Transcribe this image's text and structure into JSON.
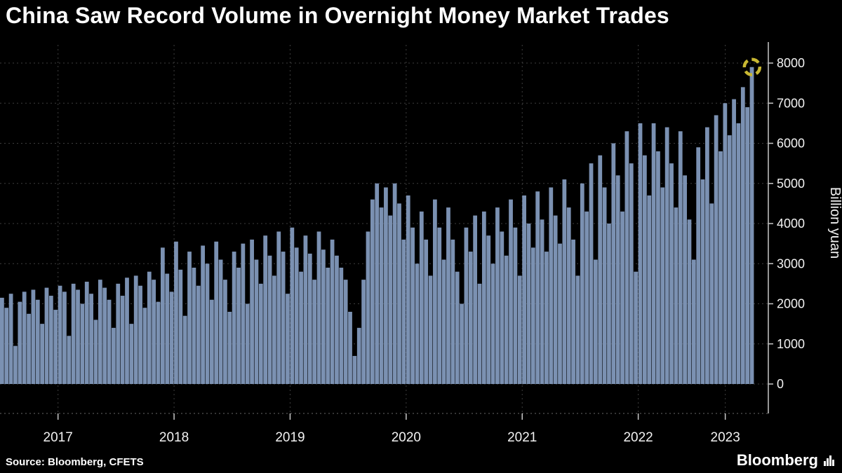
{
  "title": "China Saw Record Volume in Overnight Money Market Trades",
  "footer": {
    "source": "Source: Bloomberg, CFETS",
    "brand": "Bloomberg"
  },
  "colors": {
    "background": "#000000",
    "bar": "#7b91b2",
    "grid": "#3e3e3e",
    "axis_line": "#c8c8c8",
    "tick_text": "#f2f2f2",
    "title_text": "#ffffff",
    "marker": "#c9b832"
  },
  "y_axis": {
    "label": "Billion yuan",
    "ticks": [
      0,
      1000,
      2000,
      3000,
      4000,
      5000,
      6000,
      7000,
      8000
    ],
    "max": 8000
  },
  "x_axis": {
    "ticks": [
      "2017",
      "2018",
      "2019",
      "2020",
      "2021",
      "2022",
      "2023"
    ]
  },
  "chart_data": {
    "type": "bar",
    "title": "China Saw Record Volume in Overnight Money Market Trades",
    "xlabel": "",
    "ylabel": "Billion yuan",
    "ylim": [
      0,
      8000
    ],
    "grid": "dotted",
    "legend": "none",
    "x_tick_labels": [
      "2017",
      "2018",
      "2019",
      "2020",
      "2021",
      "2022",
      "2023"
    ],
    "samples_per_year": [
      26,
      26,
      26,
      26,
      26,
      26,
      13
    ],
    "frequency": "approx. biweekly values estimated from daily series",
    "values": [
      2150,
      1900,
      2250,
      950,
      2050,
      2300,
      1750,
      2350,
      2100,
      1500,
      2400,
      2200,
      1850,
      2450,
      2300,
      1200,
      2500,
      2350,
      2000,
      2550,
      2250,
      1600,
      2600,
      2400,
      2100,
      1400,
      2500,
      2200,
      2650,
      1500,
      2700,
      2450,
      1900,
      2800,
      2600,
      2050,
      3400,
      2750,
      2300,
      3550,
      2850,
      1700,
      3300,
      2900,
      2450,
      3450,
      3000,
      2100,
      3550,
      3100,
      2600,
      1800,
      3300,
      2900,
      3500,
      2000,
      3600,
      3100,
      2500,
      3700,
      3200,
      2700,
      3800,
      3300,
      2250,
      3900,
      3400,
      2800,
      3700,
      3250,
      2600,
      3800,
      3350,
      2900,
      3600,
      3200,
      2900,
      2600,
      1800,
      700,
      1400,
      2600,
      3800,
      4600,
      5000,
      4400,
      4900,
      4200,
      5000,
      4500,
      3600,
      4700,
      3900,
      3000,
      4300,
      3600,
      2700,
      4600,
      3900,
      3100,
      4400,
      3600,
      2800,
      2000,
      3900,
      3300,
      4200,
      2500,
      4300,
      3700,
      3000,
      4400,
      3800,
      3200,
      4600,
      3900,
      2700,
      4700,
      4000,
      3400,
      4800,
      4100,
      3300,
      4900,
      4200,
      3500,
      5100,
      4400,
      3600,
      2700,
      5000,
      4300,
      5500,
      3100,
      5700,
      4900,
      4000,
      6000,
      5200,
      4300,
      6300,
      5500,
      2800,
      6500,
      5700,
      4700,
      6500,
      5800,
      4900,
      6400,
      5500,
      4400,
      6300,
      5200,
      4100,
      3100,
      5900,
      5100,
      6400,
      4500,
      6700,
      5800,
      7000,
      6200,
      7100,
      6500,
      7400,
      6900,
      7900
    ],
    "record_last_value": 7900,
    "record_marker": "dashed yellow circle highlighting final record point"
  }
}
